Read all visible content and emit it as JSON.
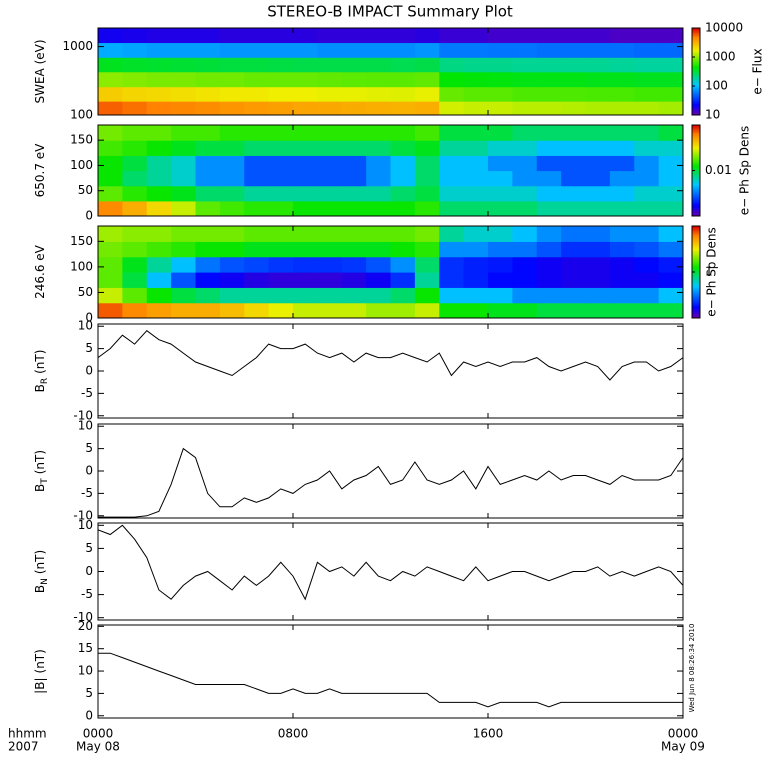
{
  "title": "STEREO-B IMPACT Summary Plot",
  "timestamp": "Wed Jun  8 08:26:34 2010",
  "x_axis": {
    "xlim": [
      0,
      24
    ],
    "xticks": [
      {
        "value": 0,
        "label": "0000"
      },
      {
        "value": 8,
        "label": "0800"
      },
      {
        "value": 16,
        "label": "1600"
      },
      {
        "value": 24,
        "label": "0000"
      }
    ],
    "date_labels": [
      {
        "value": 0,
        "label": "May 08"
      },
      {
        "value": 24,
        "label": "May 09"
      }
    ],
    "unit_label": "hhmm",
    "year_label": "2007"
  },
  "chart_data": [
    {
      "type": "heatmap",
      "ylabel": "SWEA (eV)",
      "ylog": true,
      "ylim": [
        100,
        1870
      ],
      "yticks": [
        100,
        1000
      ],
      "colorbar_label": "e− Flux",
      "clim": [
        10,
        10000
      ],
      "clog": true,
      "cticks": [
        10,
        100,
        1000,
        10000
      ],
      "x_bins": [
        0,
        1,
        2,
        3,
        4,
        5,
        6,
        7,
        8,
        9,
        10,
        11,
        12,
        13,
        14,
        15,
        16,
        17,
        18,
        19,
        20,
        21,
        22,
        23,
        24
      ],
      "y_bins": [
        100,
        160,
        260,
        430,
        700,
        1150,
        1870
      ],
      "values": [
        [
          6000,
          5500,
          5000,
          4800,
          4500,
          4200,
          4000,
          3800,
          3600,
          3500,
          3400,
          3300,
          3200,
          3300,
          1500,
          1400,
          1400,
          1300,
          1300,
          1250,
          1200,
          1200,
          1200,
          1150
        ],
        [
          2500,
          2300,
          2200,
          2100,
          2000,
          1900,
          1900,
          1800,
          1800,
          1700,
          1700,
          1650,
          1600,
          1700,
          800,
          750,
          750,
          700,
          700,
          700,
          680,
          680,
          650,
          650
        ],
        [
          1000,
          950,
          900,
          900,
          850,
          850,
          800,
          800,
          800,
          780,
          760,
          750,
          750,
          780,
          450,
          430,
          420,
          400,
          400,
          400,
          390,
          390,
          380,
          380
        ],
        [
          380,
          360,
          350,
          340,
          330,
          320,
          320,
          310,
          300,
          300,
          300,
          300,
          290,
          300,
          220,
          210,
          210,
          200,
          200,
          200,
          200,
          195,
          190,
          190
        ],
        [
          90,
          85,
          80,
          80,
          80,
          75,
          75,
          75,
          75,
          70,
          70,
          70,
          70,
          75,
          60,
          60,
          58,
          58,
          55,
          55,
          55,
          55,
          52,
          52
        ],
        [
          20,
          19,
          18,
          18,
          18,
          17,
          17,
          17,
          17,
          16,
          16,
          16,
          16,
          17,
          15,
          15,
          14,
          14,
          14,
          14,
          14,
          13,
          13,
          13
        ]
      ]
    },
    {
      "type": "heatmap",
      "ylabel": "650.7 eV",
      "ylim": [
        0,
        180
      ],
      "yticks": [
        0,
        50,
        100,
        150
      ],
      "colorbar_label": "e− Ph Sp Dens",
      "clim": [
        0.002,
        0.05
      ],
      "clog": true,
      "cticks": [
        0.01
      ],
      "x_bins": [
        0,
        1,
        2,
        3,
        4,
        5,
        6,
        7,
        8,
        9,
        10,
        11,
        12,
        13,
        14,
        15,
        16,
        17,
        18,
        19,
        20,
        21,
        22,
        23,
        24
      ],
      "y_bins": [
        0,
        30,
        60,
        90,
        120,
        150,
        180
      ],
      "values": [
        [
          0.035,
          0.03,
          0.025,
          0.02,
          0.015,
          0.014,
          0.013,
          0.013,
          0.012,
          0.012,
          0.012,
          0.012,
          0.012,
          0.013,
          0.009,
          0.009,
          0.009,
          0.009,
          0.008,
          0.008,
          0.008,
          0.008,
          0.008,
          0.008
        ],
        [
          0.015,
          0.013,
          0.012,
          0.011,
          0.009,
          0.009,
          0.008,
          0.008,
          0.008,
          0.008,
          0.008,
          0.008,
          0.009,
          0.01,
          0.007,
          0.007,
          0.007,
          0.007,
          0.006,
          0.006,
          0.006,
          0.006,
          0.007,
          0.007
        ],
        [
          0.012,
          0.009,
          0.008,
          0.007,
          0.005,
          0.005,
          0.004,
          0.004,
          0.004,
          0.004,
          0.004,
          0.005,
          0.006,
          0.009,
          0.006,
          0.006,
          0.006,
          0.005,
          0.005,
          0.004,
          0.004,
          0.005,
          0.005,
          0.006
        ],
        [
          0.012,
          0.01,
          0.008,
          0.007,
          0.005,
          0.005,
          0.004,
          0.004,
          0.004,
          0.004,
          0.004,
          0.005,
          0.006,
          0.009,
          0.006,
          0.006,
          0.005,
          0.005,
          0.004,
          0.004,
          0.004,
          0.004,
          0.005,
          0.006
        ],
        [
          0.014,
          0.013,
          0.012,
          0.011,
          0.01,
          0.01,
          0.009,
          0.009,
          0.009,
          0.009,
          0.009,
          0.009,
          0.01,
          0.011,
          0.008,
          0.008,
          0.007,
          0.007,
          0.006,
          0.006,
          0.006,
          0.006,
          0.007,
          0.007
        ],
        [
          0.016,
          0.015,
          0.015,
          0.014,
          0.014,
          0.013,
          0.013,
          0.013,
          0.013,
          0.013,
          0.013,
          0.013,
          0.013,
          0.014,
          0.01,
          0.01,
          0.01,
          0.009,
          0.009,
          0.009,
          0.009,
          0.009,
          0.009,
          0.01
        ]
      ]
    },
    {
      "type": "heatmap",
      "ylabel": "246.6 eV",
      "ylim": [
        0,
        180
      ],
      "yticks": [
        0,
        50,
        100,
        150
      ],
      "colorbar_label": "e− Ph Sp Dens",
      "clim": [
        0.2,
        5
      ],
      "clog": true,
      "cticks": [
        1
      ],
      "x_bins": [
        0,
        1,
        2,
        3,
        4,
        5,
        6,
        7,
        8,
        9,
        10,
        11,
        12,
        13,
        14,
        15,
        16,
        17,
        18,
        19,
        20,
        21,
        22,
        23,
        24
      ],
      "y_bins": [
        0,
        30,
        60,
        90,
        120,
        150,
        180
      ],
      "values": [
        [
          4,
          3.5,
          3.2,
          3,
          3,
          2.8,
          2.5,
          2.2,
          2,
          2,
          2,
          1.8,
          1.8,
          2,
          1.2,
          1.2,
          1.1,
          1.1,
          1,
          1,
          1,
          1,
          1,
          1
        ],
        [
          2,
          1.5,
          1.2,
          1,
          0.9,
          0.8,
          0.8,
          0.8,
          0.8,
          0.8,
          0.8,
          0.8,
          0.9,
          1.2,
          0.6,
          0.6,
          0.6,
          0.5,
          0.5,
          0.5,
          0.5,
          0.5,
          0.5,
          0.6
        ],
        [
          1.5,
          1,
          0.6,
          0.4,
          0.3,
          0.28,
          0.26,
          0.25,
          0.25,
          0.25,
          0.26,
          0.28,
          0.35,
          0.8,
          0.35,
          0.33,
          0.3,
          0.3,
          0.28,
          0.27,
          0.27,
          0.28,
          0.28,
          0.3
        ],
        [
          1.5,
          1.1,
          0.8,
          0.6,
          0.45,
          0.4,
          0.38,
          0.36,
          0.35,
          0.35,
          0.36,
          0.4,
          0.5,
          0.9,
          0.35,
          0.33,
          0.32,
          0.3,
          0.28,
          0.27,
          0.27,
          0.28,
          0.3,
          0.32
        ],
        [
          1.6,
          1.5,
          1.4,
          1.3,
          1.2,
          1.2,
          1.1,
          1.1,
          1.1,
          1.1,
          1.1,
          1.1,
          1.2,
          1.3,
          0.5,
          0.5,
          0.45,
          0.45,
          0.4,
          0.35,
          0.35,
          0.38,
          0.4,
          0.45
        ],
        [
          1.8,
          1.7,
          1.7,
          1.6,
          1.6,
          1.6,
          1.5,
          1.5,
          1.5,
          1.5,
          1.5,
          1.5,
          1.5,
          1.6,
          0.8,
          0.7,
          0.7,
          0.6,
          0.5,
          0.45,
          0.45,
          0.5,
          0.5,
          0.6
        ]
      ]
    },
    {
      "type": "line",
      "ylabel": "B",
      "ylabel_subscript": "R",
      "ylabel_unit": "(nT)",
      "color": "#000000",
      "ylim": [
        -10.5,
        10.5
      ],
      "yticks": [
        -10,
        -5,
        0,
        5,
        10
      ],
      "x": [
        0,
        0.5,
        1,
        1.5,
        2,
        2.5,
        3,
        3.5,
        4,
        4.5,
        5,
        5.5,
        6,
        6.5,
        7,
        7.5,
        8,
        8.5,
        9,
        9.5,
        10,
        10.5,
        11,
        11.5,
        12,
        12.5,
        13,
        13.5,
        14,
        14.5,
        15,
        15.5,
        16,
        16.5,
        17,
        17.5,
        18,
        18.5,
        19,
        19.5,
        20,
        20.5,
        21,
        21.5,
        22,
        22.5,
        23,
        23.5,
        24
      ],
      "values": [
        3,
        5,
        8,
        6,
        9,
        7,
        6,
        4,
        2,
        1,
        0,
        -1,
        1,
        3,
        6,
        5,
        5,
        6,
        4,
        3,
        4,
        2,
        4,
        3,
        3,
        4,
        3,
        2,
        4,
        -1,
        2,
        1,
        2,
        1,
        2,
        2,
        3,
        1,
        0,
        1,
        2,
        1,
        -2,
        1,
        2,
        2,
        0,
        1,
        3
      ]
    },
    {
      "type": "line",
      "ylabel": "B",
      "ylabel_subscript": "T",
      "ylabel_unit": "(nT)",
      "color": "#000000",
      "ylim": [
        -10.5,
        10.5
      ],
      "yticks": [
        -10,
        -5,
        0,
        5,
        10
      ],
      "x": [
        0,
        0.5,
        1,
        1.5,
        2,
        2.5,
        3,
        3.5,
        4,
        4.5,
        5,
        5.5,
        6,
        6.5,
        7,
        7.5,
        8,
        8.5,
        9,
        9.5,
        10,
        10.5,
        11,
        11.5,
        12,
        12.5,
        13,
        13.5,
        14,
        14.5,
        15,
        15.5,
        16,
        16.5,
        17,
        17.5,
        18,
        18.5,
        19,
        19.5,
        20,
        20.5,
        21,
        21.5,
        22,
        22.5,
        23,
        23.5,
        24
      ],
      "values": [
        -10.3,
        -10.3,
        -10.3,
        -10.3,
        -10,
        -9,
        -3,
        5,
        3,
        -5,
        -8,
        -8,
        -6,
        -7,
        -6,
        -4,
        -5,
        -3,
        -2,
        0,
        -4,
        -2,
        -1,
        1,
        -3,
        -2,
        2,
        -2,
        -3,
        -2,
        0,
        -4,
        1,
        -3,
        -2,
        -1,
        -2,
        0,
        -2,
        -1,
        -1,
        -2,
        -3,
        -1,
        -2,
        -2,
        -2,
        -1,
        3
      ]
    },
    {
      "type": "line",
      "ylabel": "B",
      "ylabel_subscript": "N",
      "ylabel_unit": "(nT)",
      "color": "#000000",
      "ylim": [
        -10.5,
        10.5
      ],
      "yticks": [
        -10,
        -5,
        0,
        5,
        10
      ],
      "x": [
        0,
        0.5,
        1,
        1.5,
        2,
        2.5,
        3,
        3.5,
        4,
        4.5,
        5,
        5.5,
        6,
        6.5,
        7,
        7.5,
        8,
        8.5,
        9,
        9.5,
        10,
        10.5,
        11,
        11.5,
        12,
        12.5,
        13,
        13.5,
        14,
        14.5,
        15,
        15.5,
        16,
        16.5,
        17,
        17.5,
        18,
        18.5,
        19,
        19.5,
        20,
        20.5,
        21,
        21.5,
        22,
        22.5,
        23,
        23.5,
        24
      ],
      "values": [
        9,
        8,
        10,
        7,
        3,
        -4,
        -6,
        -3,
        -1,
        0,
        -2,
        -4,
        -1,
        -3,
        -1,
        2,
        -1,
        -6,
        2,
        0,
        1,
        -1,
        2,
        -1,
        -2,
        0,
        -1,
        1,
        0,
        -1,
        -2,
        1,
        -2,
        -1,
        0,
        0,
        -1,
        -2,
        -1,
        0,
        0,
        1,
        -1,
        0,
        -1,
        0,
        1,
        0,
        -3
      ]
    },
    {
      "type": "line",
      "ylabel": "|B|",
      "ylabel_unit": "(nT)",
      "color": "#000000",
      "ylim": [
        -0.5,
        20.3
      ],
      "yticks": [
        0,
        5,
        10,
        15,
        20
      ],
      "x": [
        0,
        0.5,
        1,
        1.5,
        2,
        2.5,
        3,
        3.5,
        4,
        4.5,
        5,
        5.5,
        6,
        6.5,
        7,
        7.5,
        8,
        8.5,
        9,
        9.5,
        10,
        10.5,
        11,
        11.5,
        12,
        12.5,
        13,
        13.5,
        14,
        14.5,
        15,
        15.5,
        16,
        16.5,
        17,
        17.5,
        18,
        18.5,
        19,
        19.5,
        20,
        20.5,
        21,
        21.5,
        22,
        22.5,
        23,
        23.5,
        24
      ],
      "values": [
        14,
        14,
        13,
        12,
        11,
        10,
        9,
        8,
        7,
        7,
        7,
        7,
        7,
        6,
        5,
        5,
        6,
        5,
        5,
        6,
        5,
        5,
        5,
        5,
        5,
        5,
        5,
        5,
        3,
        3,
        3,
        3,
        2,
        3,
        3,
        3,
        3,
        2,
        3,
        3,
        3,
        3,
        3,
        3,
        3,
        3,
        3,
        3,
        3
      ]
    }
  ]
}
